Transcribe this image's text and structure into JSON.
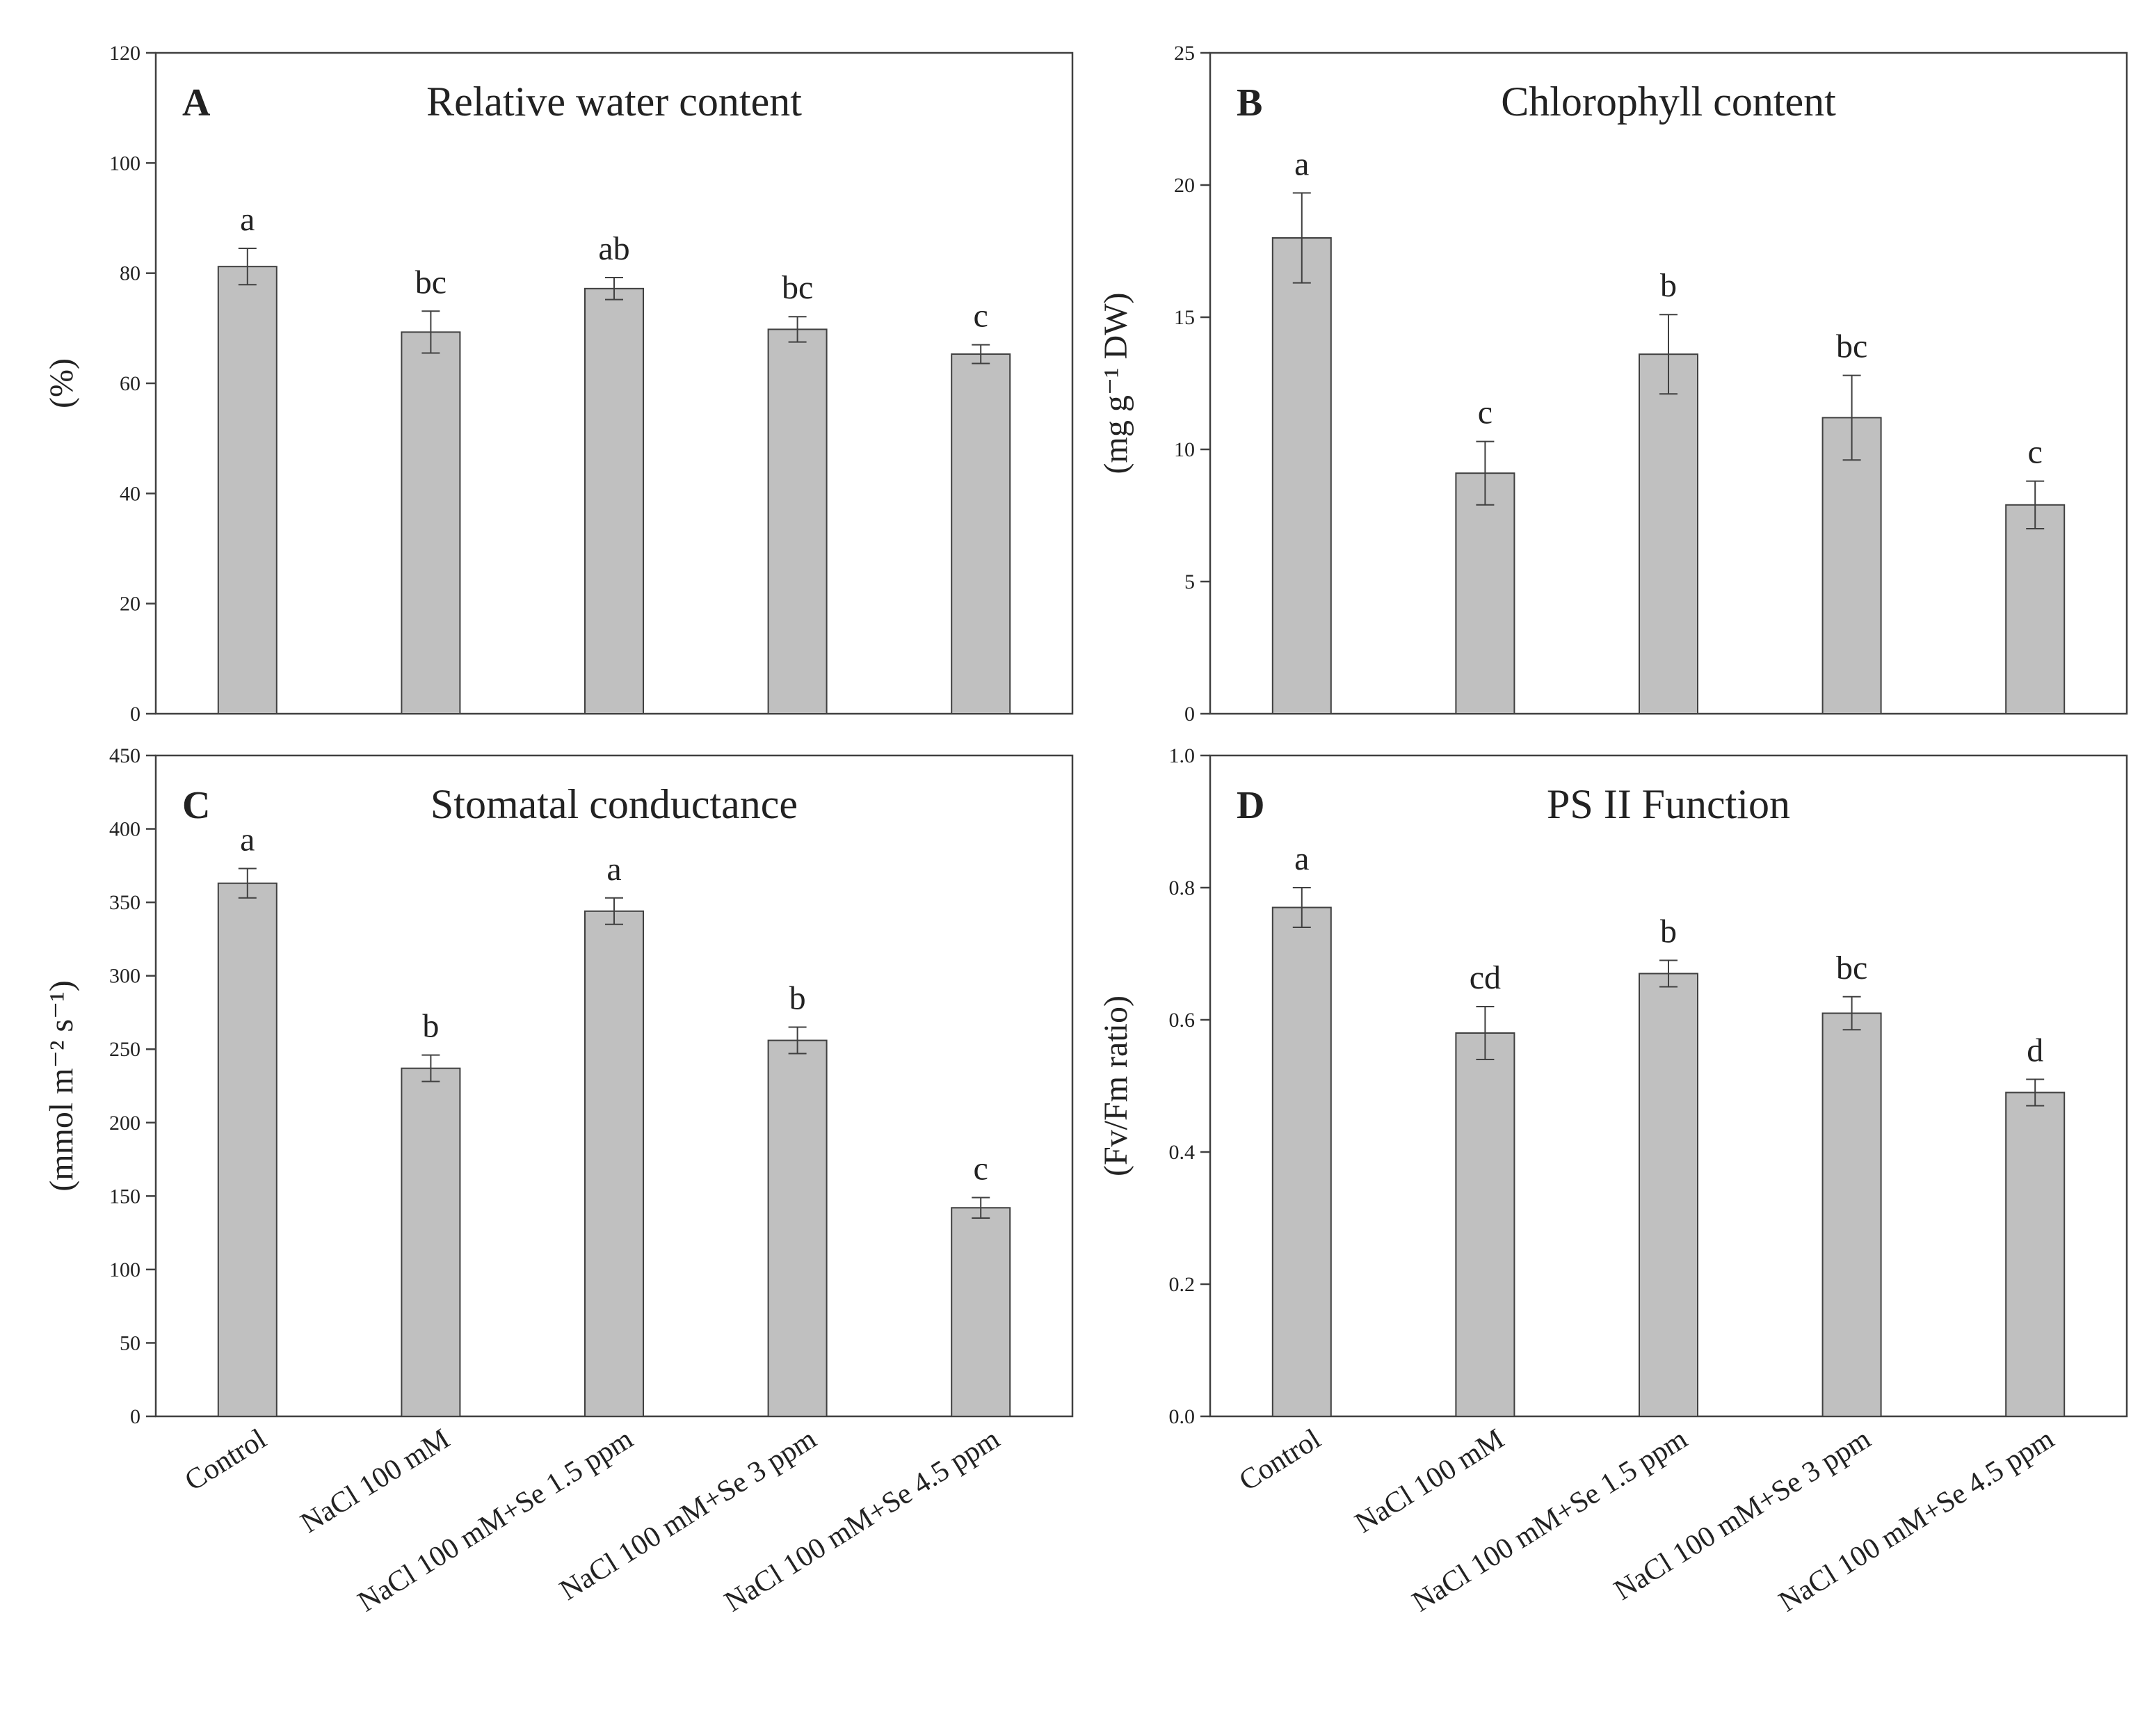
{
  "chart_data": [
    {
      "type": "bar",
      "panel": "A",
      "title": "Relative water content",
      "ylabel": "(%)",
      "ylim": [
        0,
        120
      ],
      "yticks": [
        0,
        20,
        40,
        60,
        80,
        100,
        120
      ],
      "categories": [
        "Control",
        "NaCl 100 mM",
        "NaCl 100 mM+Se 1.5 ppm",
        "NaCl 100 mM+Se 3 ppm",
        "NaCl 100 mM+Se 4.5 ppm"
      ],
      "values": [
        81.2,
        69.3,
        77.2,
        69.8,
        65.3
      ],
      "errors": [
        3.3,
        3.8,
        2.0,
        2.3,
        1.7
      ],
      "significance": [
        "a",
        "bc",
        "ab",
        "bc",
        "c"
      ],
      "show_categories": false
    },
    {
      "type": "bar",
      "panel": "B",
      "title": "Chlorophyll content",
      "ylabel": "(mg g⁻¹ DW)",
      "ylim": [
        0,
        25
      ],
      "yticks": [
        0,
        5,
        10,
        15,
        20,
        25
      ],
      "categories": [
        "Control",
        "NaCl 100 mM",
        "NaCl 100 mM+Se 1.5 ppm",
        "NaCl 100 mM+Se 3 ppm",
        "NaCl 100 mM+Se 4.5 ppm"
      ],
      "values": [
        18.0,
        9.1,
        13.6,
        11.2,
        7.9
      ],
      "errors": [
        1.7,
        1.2,
        1.5,
        1.6,
        0.9
      ],
      "significance": [
        "a",
        "c",
        "b",
        "bc",
        "c"
      ],
      "show_categories": false
    },
    {
      "type": "bar",
      "panel": "C",
      "title": "Stomatal conductance",
      "ylabel": "(mmol m⁻² s⁻¹)",
      "ylim": [
        0,
        450
      ],
      "yticks": [
        0,
        50,
        100,
        150,
        200,
        250,
        300,
        350,
        400,
        450
      ],
      "categories": [
        "Control",
        "NaCl 100 mM",
        "NaCl 100 mM+Se 1.5 ppm",
        "NaCl 100 mM+Se 3 ppm",
        "NaCl 100 mM+Se 4.5 ppm"
      ],
      "values": [
        363,
        237,
        344,
        256,
        142
      ],
      "errors": [
        10,
        9,
        9,
        9,
        7
      ],
      "significance": [
        "a",
        "b",
        "a",
        "b",
        "c"
      ],
      "show_categories": true
    },
    {
      "type": "bar",
      "panel": "D",
      "title": "PS II Function",
      "ylabel": "(Fv/Fm ratio)",
      "ylim": [
        0,
        1.0
      ],
      "yticks": [
        "0.0",
        "0.2",
        "0.4",
        "0.6",
        "0.8",
        "1.0"
      ],
      "categories": [
        "Control",
        "NaCl 100 mM",
        "NaCl 100 mM+Se 1.5 ppm",
        "NaCl 100 mM+Se 3 ppm",
        "NaCl 100 mM+Se 4.5 ppm"
      ],
      "values": [
        0.77,
        0.58,
        0.67,
        0.61,
        0.49
      ],
      "errors": [
        0.03,
        0.04,
        0.02,
        0.025,
        0.02
      ],
      "significance": [
        "a",
        "cd",
        "b",
        "bc",
        "d"
      ],
      "show_categories": true
    }
  ],
  "colors": {
    "bar_fill": "#c0c0c0",
    "bar_stroke": "#404040",
    "axis": "#404040",
    "text": "#222222"
  }
}
